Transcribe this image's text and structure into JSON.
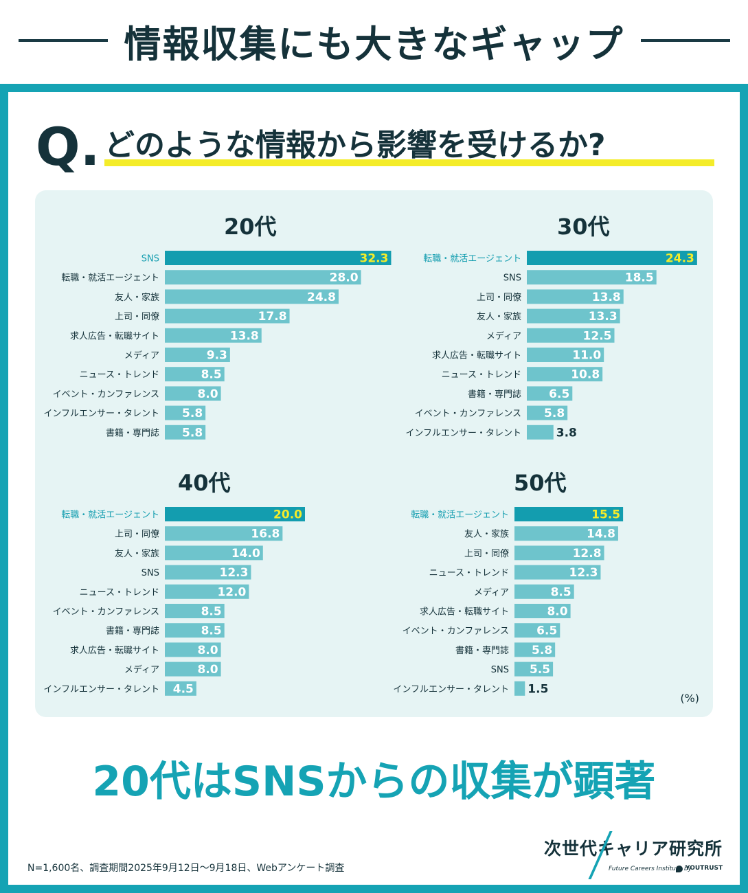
{
  "header": {
    "title": "情報収集にも大きなギャップ"
  },
  "question": {
    "mark": "Q.",
    "text": "どのような情報から影響を受けるか?"
  },
  "unit_label": "(%)",
  "conclusion": "20代はSNSからの収集が顕著",
  "footnote": "N=1,600名、調査期間2025年9月12日〜9月18日、Webアンケート調査",
  "logo": {
    "name": "次世代キャリア研究所",
    "tagline": "Future Careers Institute by",
    "brand": "YOUTRUST"
  },
  "colors": {
    "top_bar": "#139daf",
    "bar": "#6ec4cc",
    "top_value": "#f4ec2a",
    "value": "#ffffff",
    "frame": "#15a3b4",
    "panel": "#e6f4f4",
    "highlight_label": "#139daf",
    "text": "#15323a"
  },
  "chart_data": [
    {
      "type": "bar",
      "orientation": "horizontal",
      "title": "20代",
      "xlim": [
        0,
        35
      ],
      "categories": [
        "SNS",
        "転職・就活エージェント",
        "友人・家族",
        "上司・同僚",
        "求人広告・転職サイト",
        "メディア",
        "ニュース・トレンド",
        "イベント・カンファレンス",
        "インフルエンサー・タレント",
        "書籍・専門誌"
      ],
      "values": [
        32.3,
        28.0,
        24.8,
        17.8,
        13.8,
        9.3,
        8.5,
        8.0,
        5.8,
        5.8
      ],
      "value_labels": [
        "32.3",
        "28.0",
        "24.8",
        "17.8",
        "13.8",
        "9.3",
        "8.5",
        "8.0",
        "5.8",
        "5.8"
      ]
    },
    {
      "type": "bar",
      "orientation": "horizontal",
      "title": "30代",
      "xlim": [
        0,
        35
      ],
      "categories": [
        "転職・就活エージェント",
        "SNS",
        "上司・同僚",
        "友人・家族",
        "メディア",
        "求人広告・転職サイト",
        "ニュース・トレンド",
        "書籍・専門誌",
        "イベント・カンファレンス",
        "インフルエンサー・タレント"
      ],
      "values": [
        24.3,
        18.5,
        13.8,
        13.3,
        12.5,
        11.0,
        10.8,
        6.5,
        5.8,
        3.8
      ],
      "value_labels": [
        "24.3",
        "18.5",
        "13.8",
        "13.3",
        "12.5",
        "11.0",
        "10.8",
        "6.5",
        "5.8",
        "3.8"
      ]
    },
    {
      "type": "bar",
      "orientation": "horizontal",
      "title": "40代",
      "xlim": [
        0,
        35
      ],
      "categories": [
        "転職・就活エージェント",
        "上司・同僚",
        "友人・家族",
        "SNS",
        "ニュース・トレンド",
        "イベント・カンファレンス",
        "書籍・専門誌",
        "求人広告・転職サイト",
        "メディア",
        "インフルエンサー・タレント"
      ],
      "values": [
        20.0,
        16.8,
        14.0,
        12.3,
        12.0,
        8.5,
        8.5,
        8.0,
        8.0,
        4.5
      ],
      "value_labels": [
        "20.0",
        "16.8",
        "14.0",
        "12.3",
        "12.0",
        "8.5",
        "8.5",
        "8.0",
        "8.0",
        "4.5"
      ]
    },
    {
      "type": "bar",
      "orientation": "horizontal",
      "title": "50代",
      "xlim": [
        0,
        35
      ],
      "categories": [
        "転職・就活エージェント",
        "友人・家族",
        "上司・同僚",
        "ニュース・トレンド",
        "メディア",
        "求人広告・転職サイト",
        "イベント・カンファレンス",
        "書籍・専門誌",
        "SNS",
        "インフルエンサー・タレント"
      ],
      "values": [
        15.5,
        14.8,
        12.8,
        12.3,
        8.5,
        8.0,
        6.5,
        5.8,
        5.5,
        1.5
      ],
      "value_labels": [
        "15.5",
        "14.8",
        "12.8",
        "12.3",
        "8.5",
        "8.0",
        "6.5",
        "5.8",
        "5.5",
        "1.5"
      ]
    }
  ]
}
